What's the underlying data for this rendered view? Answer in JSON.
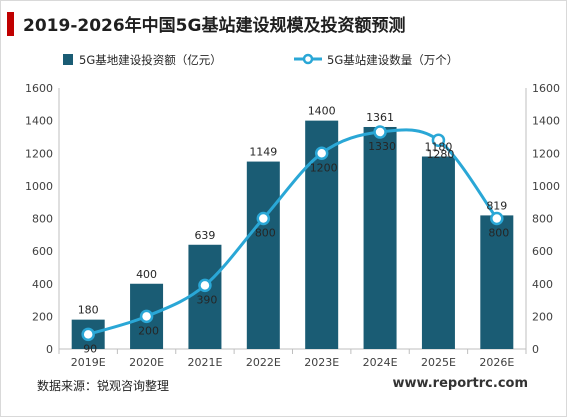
{
  "title": "2019-2026年中国5G基站建设规模及投资额预测",
  "source": "数据来源：锐观咨询整理",
  "website": "www.reportrc.com",
  "colors": {
    "bar": "#1a5c74",
    "line": "#2aa7d6",
    "accent": "#c00000"
  },
  "chart_data": {
    "type": "bar",
    "categories": [
      "2019E",
      "2020E",
      "2021E",
      "2022E",
      "2023E",
      "2024E",
      "2025E",
      "2026E"
    ],
    "series": [
      {
        "name": "5G基地建设投资额（亿元）",
        "type": "bar",
        "axis": "left",
        "values": [
          180,
          400,
          639,
          1149,
          1400,
          1361,
          1180,
          819
        ]
      },
      {
        "name": "5G基站建设数量（万个）",
        "type": "line",
        "axis": "right",
        "smooth": true,
        "values": [
          90,
          200,
          390,
          800,
          1200,
          1330,
          1280,
          800
        ]
      }
    ],
    "ylim": [
      0,
      1600
    ],
    "y2lim": [
      0,
      1600
    ],
    "yticks": [
      "0",
      "200",
      "400",
      "600",
      "800",
      "1000",
      "1200",
      "1400",
      "1600"
    ],
    "legend_position": "top",
    "grid": false
  }
}
